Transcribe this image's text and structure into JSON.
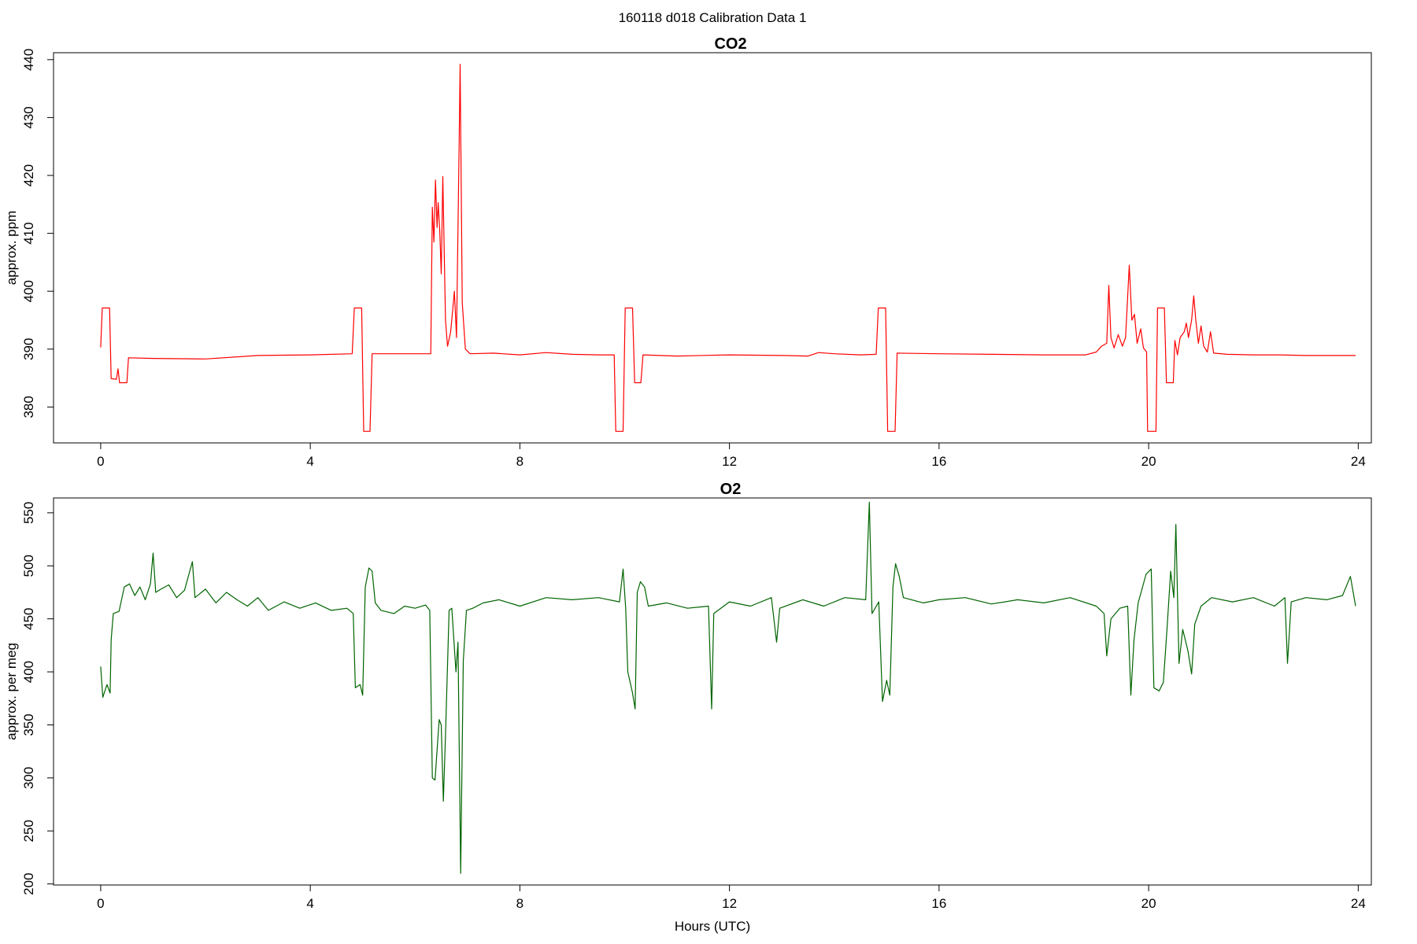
{
  "figure": {
    "suptitle": "160118   d018   Calibration Data 1"
  },
  "colors": {
    "co2": "#ff0000",
    "o2": "#006400",
    "frame": "#000000",
    "background": "#ffffff"
  },
  "chart_data": [
    {
      "type": "line",
      "title": "CO2",
      "xlabel": "",
      "ylabel": "approx. ppm",
      "xlim": [
        -0.9,
        24.25
      ],
      "ylim": [
        373.8,
        441.2
      ],
      "xticks": [
        0,
        4,
        8,
        12,
        16,
        20,
        24
      ],
      "yticks": [
        380,
        390,
        400,
        410,
        420,
        430,
        440
      ],
      "grid": false,
      "series": [
        {
          "color": "#ff0000",
          "points": [
            [
              0.0,
              390.3
            ],
            [
              0.03,
              397.1
            ],
            [
              0.17,
              397.1
            ],
            [
              0.2,
              384.9
            ],
            [
              0.3,
              384.8
            ],
            [
              0.33,
              386.6
            ],
            [
              0.36,
              384.2
            ],
            [
              0.5,
              384.2
            ],
            [
              0.53,
              388.5
            ],
            [
              1.0,
              388.4
            ],
            [
              2.0,
              388.3
            ],
            [
              3.0,
              388.9
            ],
            [
              4.0,
              389.0
            ],
            [
              4.8,
              389.2
            ],
            [
              4.84,
              397.1
            ],
            [
              4.98,
              397.1
            ],
            [
              5.02,
              375.8
            ],
            [
              5.14,
              375.8
            ],
            [
              5.18,
              389.2
            ],
            [
              6.0,
              389.2
            ],
            [
              6.3,
              389.2
            ],
            [
              6.33,
              414.5
            ],
            [
              6.36,
              408.5
            ],
            [
              6.39,
              419.2
            ],
            [
              6.42,
              411.0
            ],
            [
              6.44,
              415.3
            ],
            [
              6.47,
              410.5
            ],
            [
              6.5,
              403.0
            ],
            [
              6.53,
              419.8
            ],
            [
              6.58,
              395.0
            ],
            [
              6.62,
              390.5
            ],
            [
              6.68,
              393.0
            ],
            [
              6.75,
              400.0
            ],
            [
              6.79,
              392.0
            ],
            [
              6.84,
              425.0
            ],
            [
              6.86,
              439.2
            ],
            [
              6.9,
              398.0
            ],
            [
              6.96,
              390.0
            ],
            [
              7.05,
              389.2
            ],
            [
              7.5,
              389.3
            ],
            [
              8.0,
              389.0
            ],
            [
              8.5,
              389.4
            ],
            [
              9.0,
              389.1
            ],
            [
              9.5,
              389.0
            ],
            [
              9.8,
              389.0
            ],
            [
              9.83,
              375.8
            ],
            [
              9.97,
              375.8
            ],
            [
              10.01,
              397.1
            ],
            [
              10.15,
              397.1
            ],
            [
              10.19,
              384.2
            ],
            [
              10.31,
              384.2
            ],
            [
              10.35,
              389.0
            ],
            [
              11.0,
              388.8
            ],
            [
              12.0,
              389.0
            ],
            [
              13.0,
              388.9
            ],
            [
              13.5,
              388.8
            ],
            [
              13.7,
              389.4
            ],
            [
              14.0,
              389.2
            ],
            [
              14.5,
              389.0
            ],
            [
              14.8,
              389.1
            ],
            [
              14.84,
              397.1
            ],
            [
              14.98,
              397.1
            ],
            [
              15.02,
              375.8
            ],
            [
              15.16,
              375.8
            ],
            [
              15.2,
              389.3
            ],
            [
              16.0,
              389.2
            ],
            [
              17.0,
              389.1
            ],
            [
              18.0,
              389.0
            ],
            [
              18.8,
              389.0
            ],
            [
              19.0,
              389.5
            ],
            [
              19.1,
              390.5
            ],
            [
              19.2,
              391.0
            ],
            [
              19.24,
              401.0
            ],
            [
              19.28,
              392.0
            ],
            [
              19.34,
              390.2
            ],
            [
              19.42,
              392.5
            ],
            [
              19.5,
              390.5
            ],
            [
              19.56,
              392.0
            ],
            [
              19.63,
              404.5
            ],
            [
              19.68,
              395.0
            ],
            [
              19.73,
              396.0
            ],
            [
              19.78,
              391.0
            ],
            [
              19.85,
              393.5
            ],
            [
              19.9,
              390.2
            ],
            [
              19.96,
              389.5
            ],
            [
              19.98,
              375.8
            ],
            [
              20.14,
              375.8
            ],
            [
              20.17,
              397.1
            ],
            [
              20.3,
              397.1
            ],
            [
              20.34,
              384.2
            ],
            [
              20.47,
              384.2
            ],
            [
              20.5,
              391.5
            ],
            [
              20.55,
              389.0
            ],
            [
              20.6,
              392.0
            ],
            [
              20.68,
              393.0
            ],
            [
              20.72,
              394.5
            ],
            [
              20.76,
              392.0
            ],
            [
              20.82,
              395.0
            ],
            [
              20.86,
              399.2
            ],
            [
              20.9,
              395.0
            ],
            [
              20.95,
              391.0
            ],
            [
              21.0,
              394.0
            ],
            [
              21.05,
              390.5
            ],
            [
              21.12,
              389.5
            ],
            [
              21.18,
              393.0
            ],
            [
              21.24,
              389.3
            ],
            [
              21.5,
              389.1
            ],
            [
              22.0,
              389.0
            ],
            [
              22.5,
              389.0
            ],
            [
              23.0,
              388.9
            ],
            [
              23.5,
              388.9
            ],
            [
              23.95,
              388.9
            ]
          ]
        }
      ]
    },
    {
      "type": "line",
      "title": "O2",
      "xlabel": "Hours (UTC)",
      "ylabel": "approx. per meg",
      "xlim": [
        -0.9,
        24.25
      ],
      "ylim": [
        199,
        564
      ],
      "xticks": [
        0,
        4,
        8,
        12,
        16,
        20,
        24
      ],
      "yticks": [
        200,
        250,
        300,
        350,
        400,
        450,
        500,
        550
      ],
      "grid": false,
      "series": [
        {
          "color": "#006400",
          "points": [
            [
              0.0,
              405
            ],
            [
              0.04,
              376
            ],
            [
              0.12,
              388
            ],
            [
              0.18,
              380
            ],
            [
              0.2,
              430
            ],
            [
              0.24,
              455
            ],
            [
              0.35,
              457
            ],
            [
              0.45,
              480
            ],
            [
              0.55,
              483
            ],
            [
              0.65,
              472
            ],
            [
              0.75,
              480
            ],
            [
              0.85,
              468
            ],
            [
              0.95,
              483
            ],
            [
              1.0,
              512
            ],
            [
              1.05,
              475
            ],
            [
              1.15,
              478
            ],
            [
              1.3,
              482
            ],
            [
              1.45,
              470
            ],
            [
              1.6,
              477
            ],
            [
              1.75,
              504
            ],
            [
              1.8,
              470
            ],
            [
              2.0,
              478
            ],
            [
              2.2,
              465
            ],
            [
              2.4,
              475
            ],
            [
              2.6,
              468
            ],
            [
              2.8,
              462
            ],
            [
              3.0,
              470
            ],
            [
              3.2,
              458
            ],
            [
              3.5,
              466
            ],
            [
              3.8,
              460
            ],
            [
              4.1,
              465
            ],
            [
              4.4,
              458
            ],
            [
              4.7,
              460
            ],
            [
              4.82,
              455
            ],
            [
              4.86,
              385
            ],
            [
              4.95,
              388
            ],
            [
              5.0,
              378
            ],
            [
              5.05,
              480
            ],
            [
              5.12,
              498
            ],
            [
              5.18,
              495
            ],
            [
              5.24,
              465
            ],
            [
              5.35,
              458
            ],
            [
              5.6,
              455
            ],
            [
              5.8,
              462
            ],
            [
              6.0,
              460
            ],
            [
              6.2,
              463
            ],
            [
              6.28,
              458
            ],
            [
              6.33,
              300
            ],
            [
              6.38,
              298
            ],
            [
              6.46,
              355
            ],
            [
              6.5,
              350
            ],
            [
              6.54,
              278
            ],
            [
              6.58,
              340
            ],
            [
              6.65,
              458
            ],
            [
              6.7,
              460
            ],
            [
              6.78,
              400
            ],
            [
              6.82,
              428
            ],
            [
              6.87,
              210
            ],
            [
              6.92,
              410
            ],
            [
              6.98,
              458
            ],
            [
              7.1,
              460
            ],
            [
              7.3,
              465
            ],
            [
              7.6,
              468
            ],
            [
              8.0,
              462
            ],
            [
              8.5,
              470
            ],
            [
              9.0,
              468
            ],
            [
              9.5,
              470
            ],
            [
              9.9,
              466
            ],
            [
              9.97,
              497
            ],
            [
              10.02,
              460
            ],
            [
              10.06,
              400
            ],
            [
              10.15,
              380
            ],
            [
              10.2,
              365
            ],
            [
              10.24,
              475
            ],
            [
              10.3,
              485
            ],
            [
              10.38,
              480
            ],
            [
              10.45,
              462
            ],
            [
              10.8,
              465
            ],
            [
              11.2,
              460
            ],
            [
              11.6,
              462
            ],
            [
              11.66,
              365
            ],
            [
              11.7,
              455
            ],
            [
              12.0,
              466
            ],
            [
              12.4,
              462
            ],
            [
              12.8,
              470
            ],
            [
              12.9,
              428
            ],
            [
              12.96,
              460
            ],
            [
              13.4,
              468
            ],
            [
              13.8,
              462
            ],
            [
              14.2,
              470
            ],
            [
              14.6,
              468
            ],
            [
              14.67,
              560
            ],
            [
              14.72,
              455
            ],
            [
              14.85,
              466
            ],
            [
              14.92,
              372
            ],
            [
              15.0,
              392
            ],
            [
              15.06,
              378
            ],
            [
              15.12,
              480
            ],
            [
              15.17,
              502
            ],
            [
              15.24,
              490
            ],
            [
              15.32,
              470
            ],
            [
              15.7,
              465
            ],
            [
              16.0,
              468
            ],
            [
              16.5,
              470
            ],
            [
              17.0,
              464
            ],
            [
              17.5,
              468
            ],
            [
              18.0,
              465
            ],
            [
              18.5,
              470
            ],
            [
              19.0,
              462
            ],
            [
              19.15,
              455
            ],
            [
              19.2,
              415
            ],
            [
              19.28,
              450
            ],
            [
              19.45,
              460
            ],
            [
              19.6,
              462
            ],
            [
              19.66,
              378
            ],
            [
              19.72,
              430
            ],
            [
              19.8,
              465
            ],
            [
              19.95,
              492
            ],
            [
              20.05,
              497
            ],
            [
              20.1,
              385
            ],
            [
              20.2,
              382
            ],
            [
              20.28,
              390
            ],
            [
              20.35,
              440
            ],
            [
              20.42,
              495
            ],
            [
              20.48,
              470
            ],
            [
              20.52,
              539
            ],
            [
              20.58,
              408
            ],
            [
              20.65,
              440
            ],
            [
              20.75,
              420
            ],
            [
              20.82,
              398
            ],
            [
              20.88,
              445
            ],
            [
              21.0,
              462
            ],
            [
              21.2,
              470
            ],
            [
              21.6,
              466
            ],
            [
              22.0,
              470
            ],
            [
              22.4,
              462
            ],
            [
              22.6,
              470
            ],
            [
              22.65,
              408
            ],
            [
              22.72,
              466
            ],
            [
              23.0,
              470
            ],
            [
              23.4,
              468
            ],
            [
              23.7,
              472
            ],
            [
              23.85,
              490
            ],
            [
              23.95,
              462
            ]
          ]
        }
      ]
    }
  ]
}
